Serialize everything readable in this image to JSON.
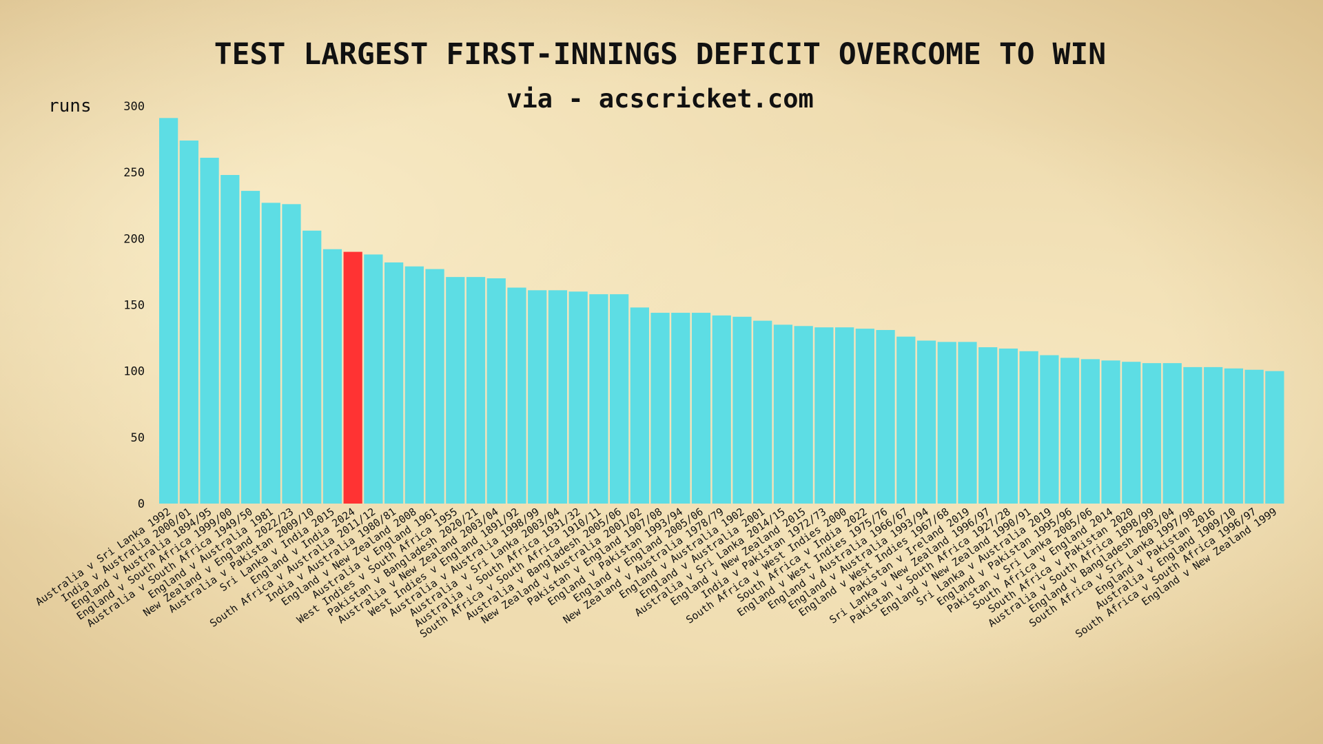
{
  "colors": {
    "bar": "#5ddde4",
    "highlight": "#ff3333",
    "text": "#111111"
  },
  "chart_data": {
    "type": "bar",
    "title": "TEST LARGEST FIRST-INNINGS DEFICIT OVERCOME TO WIN",
    "subtitle": "via - acscricket.com",
    "ylabel": "runs",
    "xlabel": "",
    "ylim": [
      0,
      300
    ],
    "yticks": [
      0,
      50,
      100,
      150,
      200,
      250,
      300
    ],
    "highlight_index": 9,
    "categories": [
      "Australia v Sri Lanka 1992",
      "India v Australia 2000/01",
      "England v Australia 1894/95",
      "England v South Africa 1999/00",
      "Australia v South Africa 1949/50",
      "England v Australia 1981",
      "New Zealand v England 2022/23",
      "Australia v Pakistan 2009/10",
      "Sri Lanka v India 2015",
      "England v India 2024",
      "South Africa v Australia 2011/12",
      "India v Australia 1980/81",
      "England v New Zealand 2008",
      "Australia v England 1961",
      "West Indies v South Africa 1955",
      "Pakistan v Bangladesh 2020/21",
      "Australia v New Zealand 2003/04",
      "West Indies v England 1891/92",
      "Australia v Australia 1998/99",
      "Australia v Sri Lanka 2003/04",
      "Australia v South Africa 1931/32",
      "South Africa v South Africa 1910/11",
      "Australia v Bangladesh 2005/06",
      "New Zealand v Australia 2001/02",
      "Pakistan v England 1907/08",
      "England v Pakistan 1993/94",
      "England v England 2005/06",
      "New Zealand v Australia 1978/79",
      "England v Australia 1902",
      "England v Australia 2001",
      "Australia v Sri Lanka 2014/15",
      "England v New Zealand 2015",
      "India v Pakistan 1972/73",
      "South Africa v West Indies 2000",
      "South Africa v India 2022",
      "England v West Indies 1975/76",
      "England v Australia 1966/67",
      "England v Australia 1993/94",
      "England v West Indies 1967/68",
      "Pakistan v Ireland 2019",
      "Sri Lanka v New Zealand 1996/97",
      "Pakistan v South Africa 1927/28",
      "England v New Zealand 1990/91",
      "Sri Lanka v Australia 2019",
      "England v Pakistan 1995/96",
      "Pakistan v Sri Lanka 2005/06",
      "South Africa v England 2014",
      "South Africa v Pakistan 2020",
      "Australia v South Africa 1898/99",
      "England v Bangladesh 2003/04",
      "South Africa v Sri Lanka 1997/98",
      "England v Pakistan 2016",
      "Australia v England 1909/10",
      "South Africa v South Africa 1996/97",
      "England v New Zealand 1999"
    ],
    "values": [
      291,
      274,
      261,
      248,
      236,
      227,
      226,
      206,
      192,
      190,
      188,
      182,
      179,
      177,
      171,
      171,
      170,
      163,
      161,
      161,
      160,
      158,
      158,
      148,
      144,
      144,
      144,
      142,
      141,
      138,
      135,
      134,
      133,
      133,
      132,
      131,
      126,
      123,
      122,
      122,
      118,
      117,
      115,
      112,
      110,
      109,
      108,
      107,
      106,
      106,
      103,
      103,
      102,
      101,
      100
    ]
  }
}
